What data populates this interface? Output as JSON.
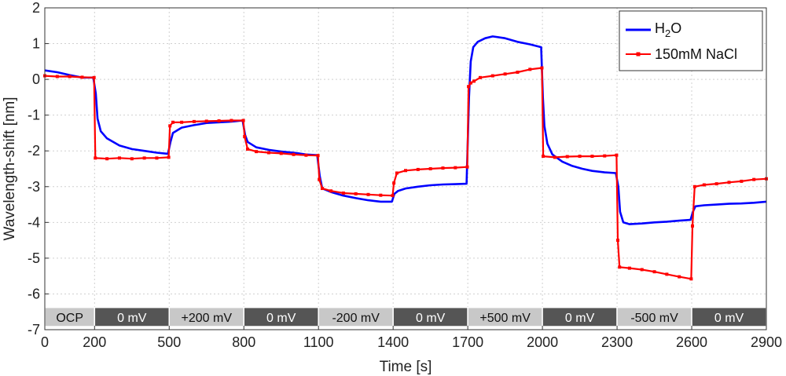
{
  "chart_data": {
    "type": "line",
    "xlabel": "Time [s]",
    "ylabel": "Wavelength-shift [nm]",
    "xlim": [
      0,
      2900
    ],
    "ylim": [
      -7,
      2
    ],
    "grid": true,
    "legend_position": "top-right",
    "x_ticks": [
      "0",
      "200",
      "500",
      "800",
      "1100",
      "1400",
      "1700",
      "2000",
      "2300",
      "2600",
      "2900"
    ],
    "y_ticks": [
      "2",
      "1",
      "0",
      "-1",
      "-2",
      "-3",
      "-4",
      "-5",
      "-6",
      "-7"
    ],
    "colors": {
      "h2o": "#0000ff",
      "nacl": "#ff0000",
      "band_dark": "#555555",
      "band_light": "#c8c8c8"
    },
    "phases": [
      {
        "label": "OCP",
        "start": 0,
        "end": 200,
        "shade": "light"
      },
      {
        "label": "0 mV",
        "start": 200,
        "end": 500,
        "shade": "dark"
      },
      {
        "label": "+200 mV",
        "start": 500,
        "end": 800,
        "shade": "light"
      },
      {
        "label": "0 mV",
        "start": 800,
        "end": 1100,
        "shade": "dark"
      },
      {
        "label": "-200 mV",
        "start": 1100,
        "end": 1400,
        "shade": "light"
      },
      {
        "label": "0 mV",
        "start": 1400,
        "end": 1700,
        "shade": "dark"
      },
      {
        "label": "+500 mV",
        "start": 1700,
        "end": 2000,
        "shade": "light"
      },
      {
        "label": "0 mV",
        "start": 2000,
        "end": 2300,
        "shade": "dark"
      },
      {
        "label": "-500 mV",
        "start": 2300,
        "end": 2600,
        "shade": "light"
      },
      {
        "label": "0 mV",
        "start": 2600,
        "end": 2900,
        "shade": "dark"
      }
    ],
    "series": [
      {
        "name": "H2O",
        "legend_main": "H",
        "legend_sub": "2",
        "legend_tail": "O",
        "color": "#0000ff",
        "points": [
          [
            0,
            0.25
          ],
          [
            50,
            0.2
          ],
          [
            100,
            0.12
          ],
          [
            150,
            0.05
          ],
          [
            195,
            0.05
          ],
          [
            205,
            -0.4
          ],
          [
            212,
            -1.1
          ],
          [
            225,
            -1.45
          ],
          [
            250,
            -1.65
          ],
          [
            300,
            -1.85
          ],
          [
            350,
            -1.95
          ],
          [
            400,
            -2.0
          ],
          [
            450,
            -2.05
          ],
          [
            495,
            -2.08
          ],
          [
            505,
            -1.75
          ],
          [
            515,
            -1.5
          ],
          [
            550,
            -1.35
          ],
          [
            600,
            -1.28
          ],
          [
            650,
            -1.22
          ],
          [
            700,
            -1.2
          ],
          [
            750,
            -1.18
          ],
          [
            795,
            -1.15
          ],
          [
            805,
            -1.55
          ],
          [
            815,
            -1.75
          ],
          [
            850,
            -1.9
          ],
          [
            900,
            -1.97
          ],
          [
            950,
            -2.02
          ],
          [
            1000,
            -2.05
          ],
          [
            1050,
            -2.1
          ],
          [
            1095,
            -2.12
          ],
          [
            1105,
            -2.7
          ],
          [
            1115,
            -3.05
          ],
          [
            1150,
            -3.15
          ],
          [
            1200,
            -3.25
          ],
          [
            1250,
            -3.32
          ],
          [
            1300,
            -3.38
          ],
          [
            1350,
            -3.42
          ],
          [
            1395,
            -3.42
          ],
          [
            1405,
            -3.2
          ],
          [
            1420,
            -3.12
          ],
          [
            1450,
            -3.05
          ],
          [
            1500,
            -3.0
          ],
          [
            1550,
            -2.96
          ],
          [
            1600,
            -2.94
          ],
          [
            1650,
            -2.93
          ],
          [
            1695,
            -2.92
          ],
          [
            1705,
            -0.5
          ],
          [
            1712,
            0.5
          ],
          [
            1722,
            0.9
          ],
          [
            1740,
            1.05
          ],
          [
            1770,
            1.15
          ],
          [
            1800,
            1.2
          ],
          [
            1850,
            1.15
          ],
          [
            1900,
            1.05
          ],
          [
            1950,
            0.98
          ],
          [
            1995,
            0.9
          ],
          [
            2002,
            -0.5
          ],
          [
            2008,
            -1.3
          ],
          [
            2020,
            -1.8
          ],
          [
            2040,
            -2.1
          ],
          [
            2080,
            -2.3
          ],
          [
            2120,
            -2.42
          ],
          [
            2160,
            -2.5
          ],
          [
            2200,
            -2.56
          ],
          [
            2250,
            -2.6
          ],
          [
            2295,
            -2.62
          ],
          [
            2305,
            -3.0
          ],
          [
            2312,
            -3.7
          ],
          [
            2325,
            -4.0
          ],
          [
            2350,
            -4.05
          ],
          [
            2400,
            -4.03
          ],
          [
            2450,
            -4.0
          ],
          [
            2500,
            -3.98
          ],
          [
            2550,
            -3.95
          ],
          [
            2595,
            -3.93
          ],
          [
            2605,
            -3.7
          ],
          [
            2615,
            -3.55
          ],
          [
            2650,
            -3.52
          ],
          [
            2700,
            -3.5
          ],
          [
            2750,
            -3.48
          ],
          [
            2800,
            -3.47
          ],
          [
            2850,
            -3.45
          ],
          [
            2900,
            -3.42
          ]
        ]
      },
      {
        "name": "150mM NaCl",
        "color": "#ff0000",
        "points": [
          [
            0,
            0.1
          ],
          [
            50,
            0.08
          ],
          [
            100,
            0.08
          ],
          [
            150,
            0.06
          ],
          [
            198,
            0.05
          ],
          [
            203,
            -2.2
          ],
          [
            250,
            -2.22
          ],
          [
            300,
            -2.2
          ],
          [
            350,
            -2.22
          ],
          [
            400,
            -2.2
          ],
          [
            450,
            -2.2
          ],
          [
            498,
            -2.18
          ],
          [
            503,
            -1.3
          ],
          [
            515,
            -1.2
          ],
          [
            550,
            -1.2
          ],
          [
            600,
            -1.18
          ],
          [
            650,
            -1.17
          ],
          [
            700,
            -1.16
          ],
          [
            750,
            -1.15
          ],
          [
            798,
            -1.15
          ],
          [
            803,
            -1.6
          ],
          [
            815,
            -1.95
          ],
          [
            850,
            -2.02
          ],
          [
            900,
            -2.05
          ],
          [
            950,
            -2.07
          ],
          [
            1000,
            -2.1
          ],
          [
            1050,
            -2.12
          ],
          [
            1098,
            -2.13
          ],
          [
            1103,
            -2.8
          ],
          [
            1115,
            -3.05
          ],
          [
            1150,
            -3.12
          ],
          [
            1200,
            -3.18
          ],
          [
            1250,
            -3.2
          ],
          [
            1300,
            -3.22
          ],
          [
            1350,
            -3.24
          ],
          [
            1398,
            -3.25
          ],
          [
            1403,
            -2.9
          ],
          [
            1415,
            -2.62
          ],
          [
            1450,
            -2.55
          ],
          [
            1500,
            -2.52
          ],
          [
            1550,
            -2.5
          ],
          [
            1600,
            -2.48
          ],
          [
            1650,
            -2.47
          ],
          [
            1698,
            -2.45
          ],
          [
            1703,
            -0.2
          ],
          [
            1712,
            -0.1
          ],
          [
            1725,
            -0.05
          ],
          [
            1750,
            0.05
          ],
          [
            1800,
            0.1
          ],
          [
            1850,
            0.15
          ],
          [
            1900,
            0.2
          ],
          [
            1950,
            0.28
          ],
          [
            1998,
            0.32
          ],
          [
            2003,
            -2.15
          ],
          [
            2050,
            -2.18
          ],
          [
            2100,
            -2.16
          ],
          [
            2150,
            -2.15
          ],
          [
            2200,
            -2.15
          ],
          [
            2250,
            -2.14
          ],
          [
            2298,
            -2.12
          ],
          [
            2303,
            -4.5
          ],
          [
            2310,
            -5.25
          ],
          [
            2350,
            -5.28
          ],
          [
            2400,
            -5.32
          ],
          [
            2450,
            -5.38
          ],
          [
            2500,
            -5.45
          ],
          [
            2550,
            -5.52
          ],
          [
            2598,
            -5.58
          ],
          [
            2603,
            -4.1
          ],
          [
            2612,
            -3.0
          ],
          [
            2650,
            -2.95
          ],
          [
            2700,
            -2.92
          ],
          [
            2750,
            -2.88
          ],
          [
            2800,
            -2.85
          ],
          [
            2850,
            -2.8
          ],
          [
            2900,
            -2.78
          ]
        ]
      }
    ]
  }
}
